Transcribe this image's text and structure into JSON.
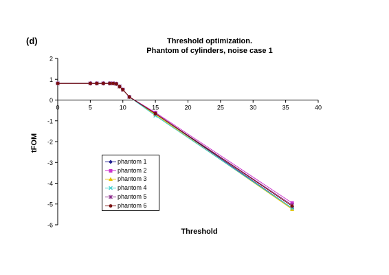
{
  "panel_label": "(d)",
  "chart_data": {
    "type": "line",
    "title_lines": [
      "Threshold optimization.",
      "Phantom of cylinders, noise case 1"
    ],
    "xlabel": "Threshold",
    "ylabel": "tFOM",
    "xlim": [
      0,
      40
    ],
    "ylim": [
      -6,
      2
    ],
    "xticks": [
      0,
      5,
      10,
      15,
      20,
      25,
      30,
      35,
      40
    ],
    "yticks": [
      2,
      1,
      0,
      -1,
      -2,
      -3,
      -4,
      -5,
      -6
    ],
    "grid": false,
    "legend_position": "lower-left",
    "series": [
      {
        "name": "phantom 1",
        "color": "#1f1f8f",
        "marker": "diamond",
        "x": [
          0,
          5,
          6,
          7,
          8,
          8.5,
          9,
          9.5,
          10,
          11,
          15,
          36
        ],
        "y": [
          0.8,
          0.8,
          0.8,
          0.8,
          0.8,
          0.8,
          0.78,
          0.65,
          0.5,
          0.15,
          -0.65,
          -5.2
        ]
      },
      {
        "name": "phantom 2",
        "color": "#cc33cc",
        "marker": "square",
        "x": [
          0,
          5,
          6,
          7,
          8,
          8.5,
          9,
          9.5,
          10,
          11,
          15,
          36
        ],
        "y": [
          0.8,
          0.8,
          0.8,
          0.8,
          0.8,
          0.8,
          0.78,
          0.65,
          0.5,
          0.15,
          -0.6,
          -4.95
        ]
      },
      {
        "name": "phantom 3",
        "color": "#e6c200",
        "marker": "triangle",
        "x": [
          0,
          5,
          6,
          7,
          8,
          8.5,
          9,
          9.5,
          10,
          11,
          15,
          36
        ],
        "y": [
          0.8,
          0.8,
          0.8,
          0.8,
          0.8,
          0.8,
          0.78,
          0.65,
          0.5,
          0.15,
          -0.7,
          -5.25
        ]
      },
      {
        "name": "phantom 4",
        "color": "#33cccc",
        "marker": "x",
        "x": [
          0,
          5,
          6,
          7,
          8,
          8.5,
          9,
          9.5,
          10,
          11,
          15,
          36
        ],
        "y": [
          0.8,
          0.8,
          0.8,
          0.8,
          0.8,
          0.8,
          0.78,
          0.65,
          0.5,
          0.15,
          -0.75,
          -5.2
        ]
      },
      {
        "name": "phantom 5",
        "color": "#8a2b8a",
        "marker": "star",
        "x": [
          0,
          5,
          6,
          7,
          8,
          8.5,
          9,
          9.5,
          10,
          11,
          15,
          36
        ],
        "y": [
          0.8,
          0.8,
          0.8,
          0.8,
          0.8,
          0.8,
          0.78,
          0.65,
          0.5,
          0.15,
          -0.65,
          -5.05
        ]
      },
      {
        "name": "phantom 6",
        "color": "#7a1010",
        "marker": "circle",
        "x": [
          0,
          5,
          6,
          7,
          8,
          8.5,
          9,
          9.5,
          10,
          11,
          15,
          36
        ],
        "y": [
          0.8,
          0.8,
          0.8,
          0.8,
          0.8,
          0.8,
          0.78,
          0.65,
          0.5,
          0.15,
          -0.65,
          -5.1
        ]
      }
    ]
  }
}
